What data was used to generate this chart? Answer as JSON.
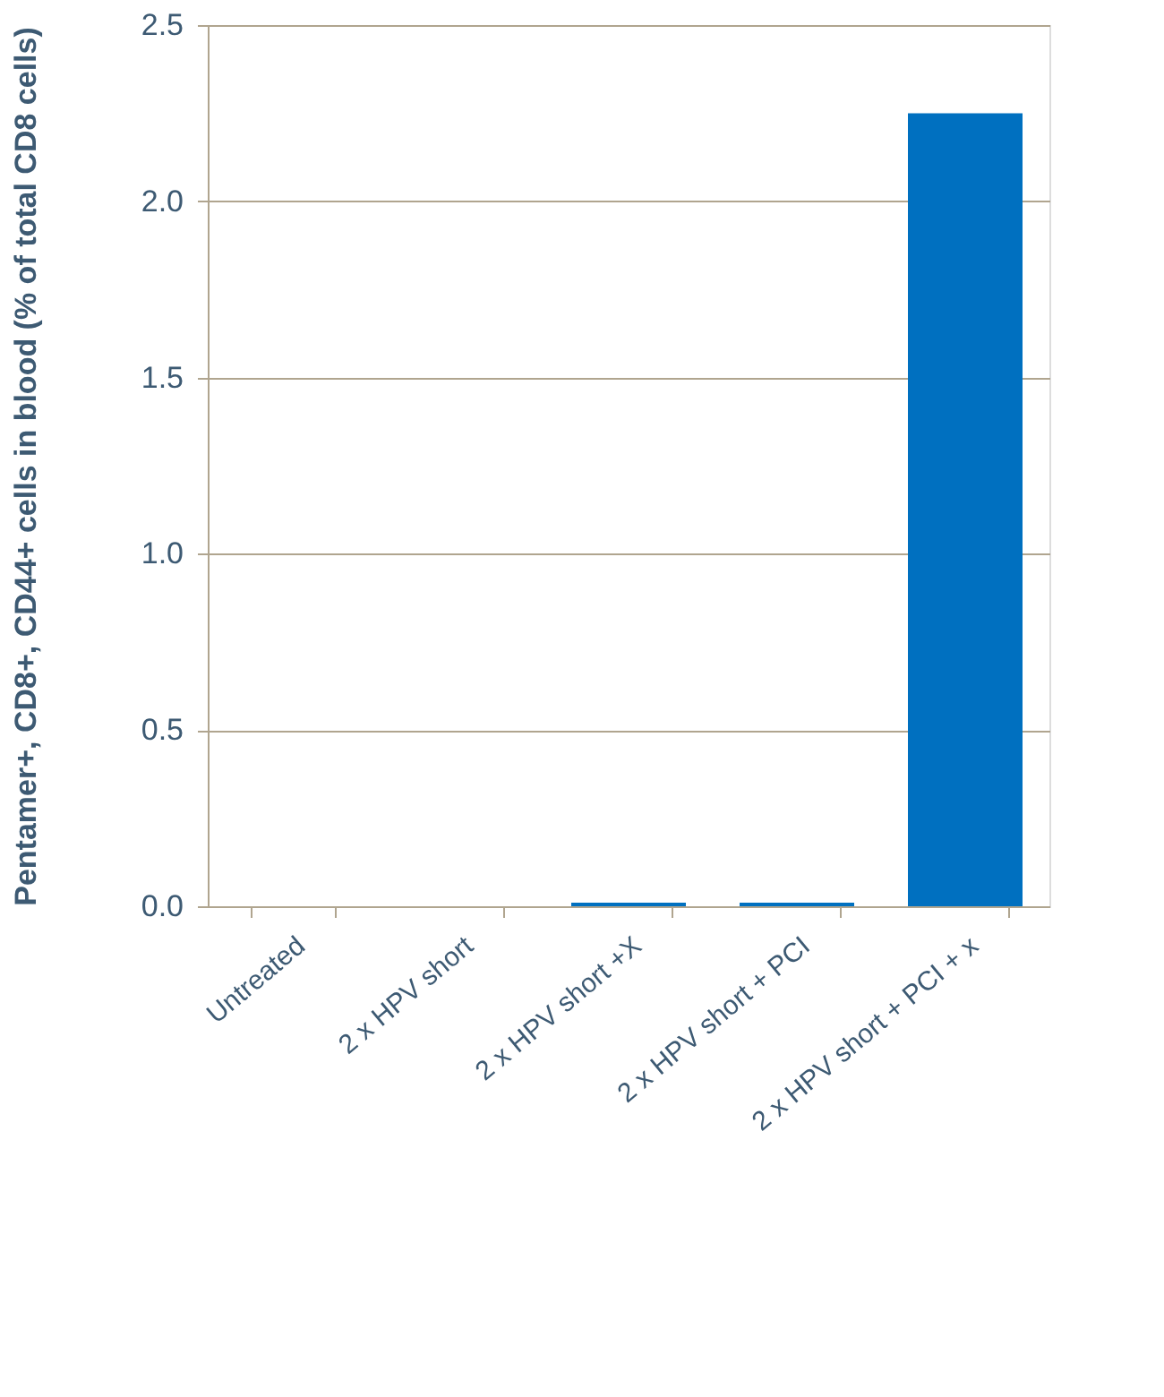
{
  "chart_data": {
    "type": "bar",
    "ylabel": "Pentamer+, CD8+, CD44+ cells in blood (% of total CD8 cells)",
    "categories": [
      "Untreated",
      "2 x HPV short",
      "2 x HPV short +X",
      "2 x HPV short + PCI",
      "2 x HPV short + PCI + x"
    ],
    "values": [
      0,
      0,
      0.01,
      0.01,
      2.25
    ],
    "color": "#0070c0",
    "ylim": [
      0,
      2.5
    ],
    "yticks": [
      {
        "value": 0,
        "label": "0.0"
      },
      {
        "value": 0.5,
        "label": "0.5"
      },
      {
        "value": 1,
        "label": "1.0"
      },
      {
        "value": 1.5,
        "label": "1.5"
      },
      {
        "value": 2,
        "label": "2.0"
      },
      {
        "value": 2.5,
        "label": "2.5"
      }
    ],
    "grid": "y"
  }
}
